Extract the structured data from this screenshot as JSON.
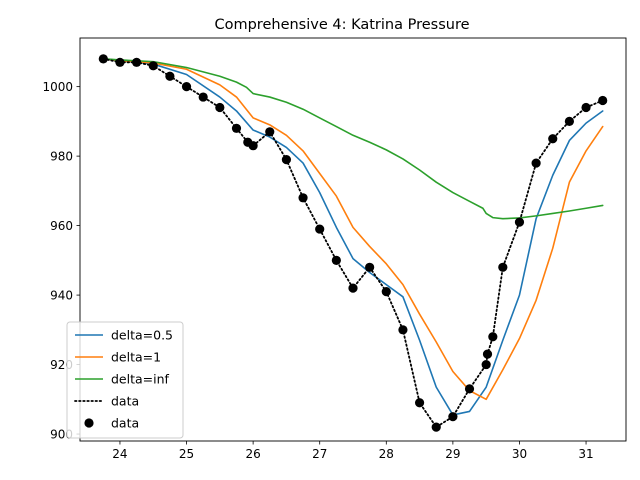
{
  "chart_data": {
    "type": "line",
    "title": "Comprehensive 4: Katrina Pressure",
    "xlabel": "",
    "ylabel": "",
    "xlim": [
      23.4,
      31.6
    ],
    "ylim": [
      898,
      1014
    ],
    "xticks": [
      24,
      25,
      26,
      27,
      28,
      29,
      30,
      31
    ],
    "yticks": [
      900,
      920,
      940,
      960,
      980,
      1000
    ],
    "grid": false,
    "legend_position": "lower-left",
    "series": [
      {
        "name": "delta=0.5",
        "color": "#1f77b4",
        "style": "solid",
        "x": [
          23.75,
          24.0,
          24.5,
          25.0,
          25.5,
          25.75,
          26.0,
          26.25,
          26.5,
          26.75,
          27.0,
          27.25,
          27.5,
          27.75,
          28.0,
          28.25,
          28.5,
          28.75,
          29.0,
          29.25,
          29.5,
          29.75,
          30.0,
          30.25,
          30.5,
          30.75,
          31.0,
          31.25
        ],
        "y": [
          1008,
          1007.5,
          1006.5,
          1003.5,
          997,
          993,
          987.5,
          985.5,
          982.5,
          978,
          969.5,
          959.5,
          950.5,
          946.5,
          943,
          939.5,
          927,
          913.5,
          905.5,
          906.5,
          913.5,
          927,
          940,
          962,
          974.5,
          984.5,
          989.5,
          993
        ]
      },
      {
        "name": "delta=1",
        "color": "#ff7f0e",
        "style": "solid",
        "x": [
          23.75,
          24.0,
          24.5,
          25.0,
          25.5,
          25.75,
          26.0,
          26.25,
          26.5,
          26.75,
          27.0,
          27.25,
          27.5,
          27.75,
          28.0,
          28.25,
          28.5,
          28.75,
          29.0,
          29.25,
          29.5,
          29.75,
          30.0,
          30.25,
          30.5,
          30.75,
          31.0,
          31.25
        ],
        "y": [
          1008,
          1007.5,
          1006.8,
          1005,
          1000.5,
          997,
          991,
          989,
          986,
          981.5,
          975,
          968.5,
          959.5,
          954,
          949,
          943,
          934.5,
          926.5,
          918,
          912.5,
          910,
          918.5,
          927.5,
          938.5,
          953.5,
          972.5,
          981.5,
          988.5
        ]
      },
      {
        "name": "delta=inf",
        "color": "#2ca02c",
        "style": "solid",
        "x": [
          23.75,
          24.0,
          24.5,
          25.0,
          25.5,
          25.75,
          25.9,
          26.0,
          26.25,
          26.5,
          26.75,
          27.0,
          27.25,
          27.5,
          27.75,
          28.0,
          28.25,
          28.5,
          28.75,
          29.0,
          29.25,
          29.45,
          29.5,
          29.6,
          29.75,
          30.0,
          30.25,
          30.5,
          30.75,
          31.0,
          31.25
        ],
        "y": [
          1008,
          1007.7,
          1007.2,
          1005.5,
          1003,
          1001.3,
          999.8,
          998,
          997,
          995.5,
          993.5,
          991,
          988.5,
          986,
          984,
          981.8,
          979.2,
          976,
          972.5,
          969.5,
          967,
          965,
          963.5,
          962.3,
          962,
          962.2,
          962.8,
          963.5,
          964.2,
          965,
          965.8
        ]
      },
      {
        "name": "data",
        "color": "#000000",
        "style": "dotted",
        "x": [
          23.75,
          24.0,
          24.25,
          24.5,
          24.75,
          25.0,
          25.25,
          25.5,
          25.75,
          25.92,
          26.0,
          26.25,
          26.5,
          26.75,
          27.0,
          27.25,
          27.5,
          27.75,
          28.0,
          28.25,
          28.5,
          28.75,
          29.0,
          29.25,
          29.5,
          29.52,
          29.6,
          29.75,
          30.0,
          30.25,
          30.5,
          30.75,
          31.0,
          31.25
        ],
        "y": [
          1008,
          1007,
          1007,
          1006,
          1003,
          1000,
          997,
          994,
          988,
          984,
          983,
          987,
          979,
          968,
          959,
          950,
          942,
          948,
          941,
          930,
          909,
          902,
          905,
          913,
          920,
          923,
          928,
          948,
          961,
          978,
          985,
          990,
          994,
          996
        ]
      },
      {
        "name": "data",
        "color": "#000000",
        "style": "markers",
        "x": [
          23.75,
          24.0,
          24.25,
          24.5,
          24.75,
          25.0,
          25.25,
          25.5,
          25.75,
          25.92,
          26.0,
          26.25,
          26.5,
          26.75,
          27.0,
          27.25,
          27.5,
          27.75,
          28.0,
          28.25,
          28.5,
          28.75,
          29.0,
          29.25,
          29.5,
          29.52,
          29.6,
          29.75,
          30.0,
          30.25,
          30.5,
          30.75,
          31.0,
          31.25
        ],
        "y": [
          1008,
          1007,
          1007,
          1006,
          1003,
          1000,
          997,
          994,
          988,
          984,
          983,
          987,
          979,
          968,
          959,
          950,
          942,
          948,
          941,
          930,
          909,
          902,
          905,
          913,
          920,
          923,
          928,
          948,
          961,
          978,
          985,
          990,
          994,
          996
        ]
      }
    ]
  }
}
